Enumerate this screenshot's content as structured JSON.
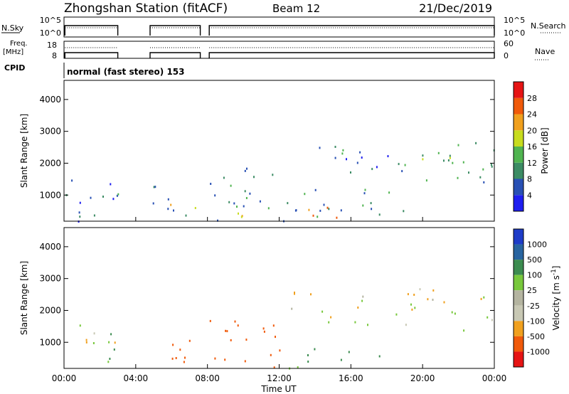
{
  "header": {
    "station": "Zhongshan Station (fitACF)",
    "beam": "Beam 12",
    "date": "21/Dec/2019"
  },
  "strip_labels": {
    "nsky": "N.Sky",
    "nsky_top": "10^5",
    "nsky_bottom": "10^0",
    "nsearch": "N.Search",
    "nsearch_top": "10^5",
    "nsearch_bottom": "10^0",
    "freq_line1": "Freq.",
    "freq_line2": "[MHz]",
    "freq_top": "18",
    "freq_bottom": "8",
    "nave": "Nave",
    "nave_top": "60",
    "nave_bottom": "0",
    "cpid": "CPID",
    "cpid_value": "normal (fast stereo) 153"
  },
  "colors": {
    "power": [
      "#1e1ef0",
      "#2850b4",
      "#3c8c64",
      "#50b450",
      "#c8dc1e",
      "#f0a01e",
      "#f05a0a",
      "#e61414"
    ],
    "velocity": [
      "#e61414",
      "#f05a0a",
      "#f0a01e",
      "#c8c8b4",
      "#b4b4a0",
      "#78c83c",
      "#3c8c50",
      "#2864a0",
      "#1e3cc8"
    ]
  },
  "chart_data": [
    {
      "type": "heatmap",
      "panel": "power",
      "ylabel": "Slant Range [km]",
      "xlabel": "Time UT",
      "x_ticks": [
        "00:00",
        "04:00",
        "08:00",
        "12:00",
        "16:00",
        "20:00",
        "00:00"
      ],
      "x_range_hours": [
        0,
        24
      ],
      "y_ticks": [
        1000,
        2000,
        3000,
        4000
      ],
      "ylim": [
        180,
        4600
      ],
      "colorbar_label": "Power [dB]",
      "colorbar_ticks": [
        "28",
        "24",
        "20",
        "16",
        "12",
        "8",
        "4"
      ],
      "colorbar_range": [
        0,
        32
      ],
      "data_gaps_hours": [
        [
          3.0,
          4.8
        ],
        [
          7.6,
          8.1
        ]
      ],
      "regions": [
        {
          "t": [
            0.1,
            3.0
          ],
          "r": [
            180,
            1800
          ],
          "value": 6
        },
        {
          "t": [
            1.0,
            3.0
          ],
          "r": [
            600,
            1100
          ],
          "value": 10
        },
        {
          "t": [
            4.8,
            7.6
          ],
          "r": [
            180,
            1300
          ],
          "value": 8
        },
        {
          "t": [
            5.0,
            7.3
          ],
          "r": [
            550,
            950
          ],
          "value": 18
        },
        {
          "t": [
            8.1,
            12.5
          ],
          "r": [
            180,
            1900
          ],
          "value": 8
        },
        {
          "t": [
            8.5,
            12.0
          ],
          "r": [
            300,
            900
          ],
          "value": 18
        },
        {
          "t": [
            12.0,
            19.0
          ],
          "r": [
            180,
            1200
          ],
          "value": 10
        },
        {
          "t": [
            13.0,
            17.0
          ],
          "r": [
            250,
            650
          ],
          "value": 24
        },
        {
          "t": [
            13.0,
            18.5
          ],
          "r": [
            1700,
            2700
          ],
          "value": 8
        },
        {
          "t": [
            18.5,
            24.0
          ],
          "r": [
            1400,
            2700
          ],
          "value": 10
        },
        {
          "t": [
            19.0,
            23.0
          ],
          "r": [
            1900,
            2500
          ],
          "value": 15
        }
      ]
    },
    {
      "type": "heatmap",
      "panel": "velocity",
      "ylabel": "Slant Range [km]",
      "xlabel": "Time UT",
      "x_ticks": [
        "00:00",
        "04:00",
        "08:00",
        "12:00",
        "16:00",
        "20:00",
        "00:00"
      ],
      "x_range_hours": [
        0,
        24
      ],
      "y_ticks": [
        1000,
        2000,
        3000,
        4000
      ],
      "ylim": [
        180,
        4600
      ],
      "colorbar_label": "Velocity [m s^-1]",
      "colorbar_ticks": [
        "1000",
        "500",
        "100",
        "25",
        "-25",
        "-100",
        "-500",
        "-1000"
      ],
      "data_gaps_hours": [
        [
          3.0,
          4.8
        ],
        [
          7.6,
          8.1
        ]
      ],
      "regions": [
        {
          "t": [
            0.1,
            3.0
          ],
          "r": [
            1000,
            1800
          ],
          "value": 0
        },
        {
          "t": [
            1.2,
            3.0
          ],
          "r": [
            200,
            1300
          ],
          "value": 150
        },
        {
          "t": [
            4.8,
            7.6
          ],
          "r": [
            200,
            1200
          ],
          "value": -200
        },
        {
          "t": [
            8.1,
            12.5
          ],
          "r": [
            200,
            1800
          ],
          "value": -400
        },
        {
          "t": [
            12.5,
            16.5
          ],
          "r": [
            200,
            900
          ],
          "value": 150
        },
        {
          "t": [
            12.5,
            17.0
          ],
          "r": [
            1500,
            2600
          ],
          "value": 0
        },
        {
          "t": [
            18.0,
            24.0
          ],
          "r": [
            1400,
            2700
          ],
          "value": 0
        },
        {
          "t": [
            17.5,
            19.0
          ],
          "r": [
            400,
            700
          ],
          "value": 200
        }
      ]
    }
  ]
}
